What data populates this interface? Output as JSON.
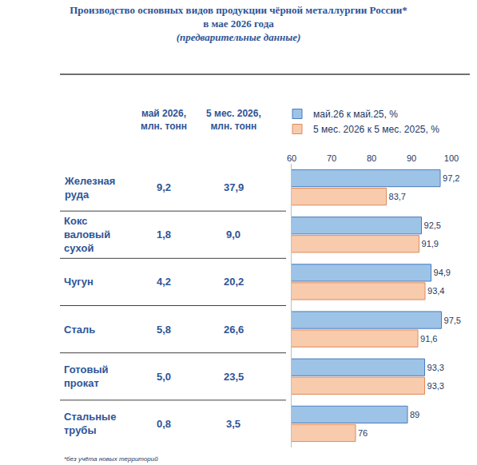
{
  "chart_data": {
    "type": "bar",
    "orientation": "horizontal",
    "title": "Производство основных видов продукции чёрной металлургии России*",
    "subtitle": "в мае 2026 года",
    "note": "(предварительные данные)",
    "footnote": "*без учёта новых территорий",
    "categories": [
      "Железная руда",
      "Кокс валовый сухой",
      "Чугун",
      "Сталь",
      "Готовый прокат",
      "Стальные трубы"
    ],
    "table": {
      "columns": [
        {
          "header": "май 2026, млн. тонн",
          "values": [
            "9,2",
            "1,8",
            "4,2",
            "5,8",
            "5,0",
            "0,8"
          ]
        },
        {
          "header": "5 мес. 2026, млн. тонн",
          "values": [
            "37,9",
            "9,0",
            "20,2",
            "26,6",
            "23,5",
            "3,5"
          ]
        }
      ]
    },
    "series": [
      {
        "name": "май.26 к май.25, %",
        "color": "#9dc3e6",
        "values": [
          97.2,
          92.5,
          94.9,
          97.5,
          93.3,
          89
        ],
        "value_labels": [
          "97,2",
          "92,5",
          "94,9",
          "97,5",
          "93,3",
          "89"
        ]
      },
      {
        "name": "5 мес. 2026 к 5 мес. 2025, %",
        "color": "#f8cbad",
        "values": [
          83.7,
          91.9,
          93.4,
          91.6,
          93.3,
          76
        ],
        "value_labels": [
          "83,7",
          "91,9",
          "93,4",
          "91,6",
          "93,3",
          "76"
        ]
      }
    ],
    "xlim": [
      60,
      100
    ],
    "xticks": [
      60,
      70,
      80,
      90,
      100
    ],
    "grid": false,
    "data_labels": true,
    "legend": "top",
    "tick_labels": "x"
  }
}
